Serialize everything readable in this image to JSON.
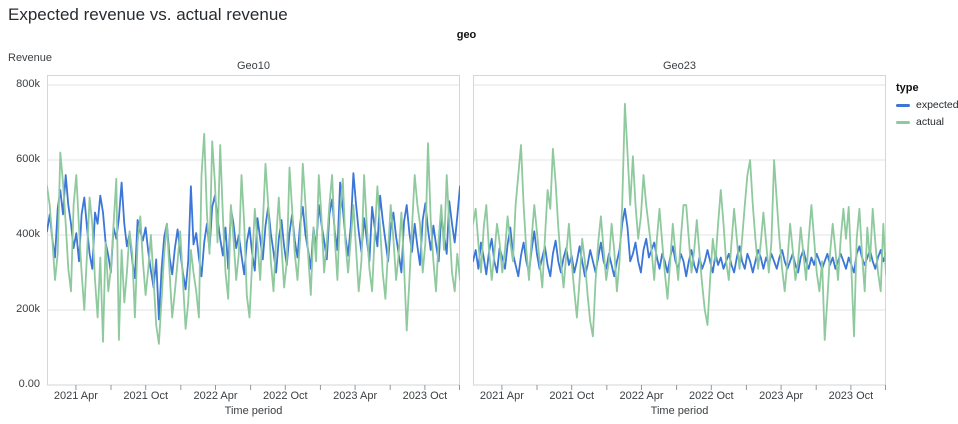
{
  "title": "Expected revenue vs. actual revenue",
  "facet_header": "geo",
  "y_axis": {
    "title": "Revenue",
    "max": 800,
    "unit": "thousands",
    "ticks": [
      {
        "v": 0,
        "label": "0.00"
      },
      {
        "v": 200,
        "label": "200k"
      },
      {
        "v": 400,
        "label": "400k"
      },
      {
        "v": 600,
        "label": "600k"
      },
      {
        "v": 800,
        "label": "800k"
      }
    ]
  },
  "x_axis": {
    "title": "Time period",
    "ticks": [
      {
        "pos": 0.07,
        "label": "2021 Apr"
      },
      {
        "pos": 0.155,
        "label": ""
      },
      {
        "pos": 0.239,
        "label": "2021 Oct"
      },
      {
        "pos": 0.324,
        "label": ""
      },
      {
        "pos": 0.408,
        "label": "2022 Apr"
      },
      {
        "pos": 0.493,
        "label": ""
      },
      {
        "pos": 0.577,
        "label": "2022 Oct"
      },
      {
        "pos": 0.662,
        "label": ""
      },
      {
        "pos": 0.746,
        "label": "2023 Apr"
      },
      {
        "pos": 0.831,
        "label": ""
      },
      {
        "pos": 0.915,
        "label": "2023 Oct"
      },
      {
        "pos": 1.0,
        "label": ""
      }
    ]
  },
  "legend": {
    "title": "type",
    "items": [
      {
        "label": "expected",
        "color": "#3b76d8"
      },
      {
        "label": "actual",
        "color": "#8fc99e"
      }
    ]
  },
  "colors": {
    "expected": "#3b76d8",
    "actual": "#8fc99e",
    "grid": "#e3e3e3",
    "border": "#d6d6d6",
    "tick": "#9097a0",
    "axis_text": "#3c4043",
    "title_text": "#272c31"
  },
  "chart_data": [
    {
      "type": "line",
      "title": "Geo10",
      "xlabel": "Time period",
      "ylabel": "Revenue",
      "x_range": "weekly points, 2021 Jan to 2023 Dec",
      "ylim": [
        0,
        800
      ],
      "y_unit": "thousands (k)",
      "legend_position": "right",
      "grid": "horizontal only",
      "series": [
        {
          "name": "expected",
          "color": "#3b76d8",
          "values": [
            410,
            455,
            390,
            340,
            470,
            520,
            455,
            560,
            480,
            430,
            365,
            405,
            330,
            455,
            500,
            420,
            350,
            310,
            460,
            430,
            505,
            460,
            380,
            345,
            300,
            420,
            390,
            445,
            540,
            430,
            370,
            405,
            330,
            285,
            440,
            410,
            385,
            420,
            355,
            305,
            260,
            335,
            175,
            310,
            395,
            430,
            340,
            295,
            365,
            415,
            355,
            300,
            255,
            330,
            530,
            375,
            405,
            340,
            290,
            380,
            430,
            360,
            475,
            505,
            445,
            390,
            345,
            420,
            310,
            470,
            430,
            365,
            400,
            345,
            295,
            380,
            420,
            350,
            305,
            445,
            390,
            335,
            425,
            475,
            405,
            355,
            300,
            390,
            440,
            370,
            320,
            405,
            455,
            385,
            340,
            430,
            475,
            400,
            360,
            310,
            420,
            365,
            480,
            430,
            385,
            335,
            455,
            495,
            410,
            360,
            540,
            470,
            395,
            345,
            425,
            565,
            480,
            410,
            355,
            445,
            390,
            330,
            475,
            420,
            370,
            505,
            440,
            385,
            330,
            420,
            460,
            395,
            350,
            300,
            435,
            480,
            405,
            355,
            430,
            370,
            320,
            440,
            485,
            415,
            360,
            425,
            375,
            330,
            455,
            400,
            350,
            490,
            430,
            380,
            450,
            530
          ]
        },
        {
          "name": "actual",
          "color": "#8fc99e",
          "values": [
            530,
            480,
            390,
            280,
            350,
            620,
            540,
            430,
            310,
            250,
            480,
            560,
            420,
            300,
            200,
            350,
            500,
            430,
            280,
            180,
            340,
            115,
            380,
            250,
            310,
            430,
            550,
            120,
            360,
            220,
            300,
            410,
            350,
            180,
            380,
            450,
            330,
            240,
            310,
            400,
            280,
            160,
            110,
            230,
            350,
            430,
            300,
            180,
            250,
            330,
            410,
            280,
            150,
            220,
            360,
            300,
            250,
            180,
            560,
            670,
            460,
            350,
            650,
            540,
            380,
            640,
            450,
            300,
            230,
            480,
            390,
            280,
            350,
            560,
            430,
            240,
            180,
            330,
            470,
            380,
            280,
            430,
            590,
            480,
            330,
            250,
            390,
            500,
            370,
            260,
            330,
            580,
            470,
            350,
            280,
            390,
            590,
            480,
            350,
            240,
            420,
            330,
            560,
            450,
            300,
            380,
            480,
            560,
            390,
            280,
            460,
            550,
            380,
            300,
            390,
            480,
            360,
            250,
            330,
            560,
            430,
            310,
            250,
            400,
            530,
            420,
            300,
            230,
            360,
            480,
            390,
            280,
            350,
            460,
            320,
            145,
            280,
            420,
            560,
            480,
            430,
            300,
            380,
            645,
            440,
            330,
            250,
            390,
            480,
            360,
            560,
            430,
            300,
            250,
            350,
            280
          ]
        }
      ]
    },
    {
      "type": "line",
      "title": "Geo23",
      "xlabel": "Time period",
      "ylabel": "Revenue",
      "x_range": "weekly points, 2021 Jan to 2023 Dec",
      "ylim": [
        0,
        800
      ],
      "y_unit": "thousands (k)",
      "legend_position": "right",
      "grid": "horizontal only",
      "series": [
        {
          "name": "expected",
          "color": "#3b76d8",
          "values": [
            330,
            360,
            310,
            380,
            340,
            295,
            355,
            390,
            330,
            300,
            365,
            340,
            310,
            375,
            420,
            350,
            320,
            290,
            345,
            380,
            330,
            300,
            360,
            410,
            350,
            310,
            340,
            370,
            320,
            290,
            350,
            385,
            330,
            300,
            340,
            365,
            320,
            345,
            300,
            330,
            370,
            330,
            290,
            320,
            360,
            330,
            300,
            340,
            380,
            330,
            310,
            350,
            320,
            290,
            330,
            360,
            430,
            470,
            420,
            330,
            350,
            380,
            330,
            300,
            360,
            390,
            340,
            360,
            380,
            340,
            310,
            350,
            330,
            300,
            340,
            370,
            330,
            310,
            350,
            330,
            290,
            330,
            360,
            320,
            300,
            340,
            310,
            330,
            360,
            330,
            300,
            350,
            320,
            340,
            310,
            330,
            350,
            320,
            300,
            340,
            370,
            330,
            310,
            350,
            330,
            300,
            330,
            360,
            340,
            310,
            340,
            320,
            350,
            330,
            310,
            340,
            360,
            330,
            310,
            330,
            350,
            320,
            300,
            340,
            360,
            330,
            310,
            340,
            320,
            350,
            330,
            310,
            330,
            350,
            320,
            340,
            310,
            330,
            350,
            330,
            310,
            340,
            320,
            300,
            350,
            370,
            340,
            320,
            340,
            360,
            330,
            310,
            340,
            360,
            330,
            350
          ]
        },
        {
          "name": "actual",
          "color": "#8fc99e",
          "values": [
            430,
            470,
            380,
            300,
            420,
            480,
            360,
            280,
            350,
            430,
            380,
            300,
            360,
            450,
            380,
            330,
            480,
            560,
            640,
            480,
            360,
            280,
            390,
            480,
            410,
            330,
            260,
            390,
            520,
            470,
            630,
            540,
            420,
            330,
            260,
            350,
            430,
            330,
            250,
            180,
            280,
            390,
            330,
            240,
            170,
            130,
            280,
            380,
            450,
            360,
            280,
            330,
            430,
            360,
            250,
            330,
            480,
            750,
            620,
            480,
            610,
            480,
            390,
            450,
            560,
            480,
            420,
            360,
            280,
            390,
            470,
            380,
            300,
            230,
            330,
            430,
            350,
            280,
            390,
            480,
            480,
            390,
            300,
            360,
            440,
            350,
            270,
            200,
            160,
            280,
            390,
            330,
            430,
            520,
            430,
            330,
            280,
            380,
            470,
            390,
            310,
            390,
            480,
            560,
            600,
            480,
            390,
            310,
            380,
            460,
            380,
            300,
            380,
            600,
            490,
            390,
            310,
            250,
            330,
            430,
            360,
            280,
            330,
            420,
            350,
            280,
            390,
            480,
            390,
            300,
            250,
            330,
            120,
            230,
            350,
            430,
            360,
            280,
            390,
            470,
            390,
            475,
            310,
            130,
            390,
            470,
            350,
            250,
            420,
            330,
            470,
            380,
            300,
            250,
            430,
            295
          ]
        }
      ]
    }
  ]
}
